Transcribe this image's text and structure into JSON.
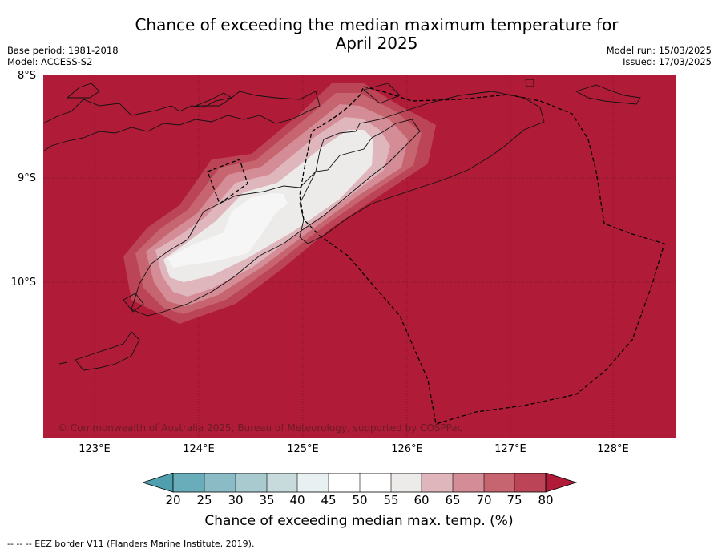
{
  "title_line1": "Chance of exceeding the median maximum temperature for",
  "title_line2": "April 2025",
  "meta_left": {
    "base_period": "Base period: 1981-2018",
    "model": "Model: ACCESS-S2"
  },
  "meta_right": {
    "model_run": "Model run: 15/03/2025",
    "issued": "Issued: 17/03/2025"
  },
  "lat_labels": [
    "8°S",
    "9°S",
    "10°S"
  ],
  "lon_labels": [
    "123°E",
    "124°E",
    "125°E",
    "126°E",
    "127°E",
    "128°E"
  ],
  "copyright": "© Commonwealth of Australia 2025, Bureau of Meteorology, supported by COSPPac",
  "colorbar": {
    "title": "Chance of exceeding median max. temp. (%)",
    "ticks": [
      "20",
      "25",
      "30",
      "35",
      "40",
      "45",
      "50",
      "55",
      "60",
      "65",
      "70",
      "75",
      "80"
    ],
    "colors": {
      "below_20": "#4f9fae",
      "20_25": "#6aadba",
      "25_30": "#8bbcc6",
      "30_35": "#a9cbd0",
      "35_40": "#c7dadc",
      "40_45": "#e9f0f1",
      "45_50": "#ffffff",
      "50_55": "#ffffff",
      "55_60": "#ecebea",
      "60_65": "#e0b6bd",
      "65_70": "#d48c96",
      "70_75": "#c6656f",
      "75_80": "#bb4556",
      "above_80": "#b01c38"
    }
  },
  "footnote": "-- -- -- EEZ border V11 (Flanders Marine Institute, 2019)."
}
